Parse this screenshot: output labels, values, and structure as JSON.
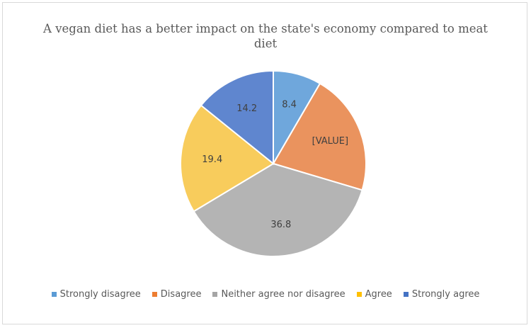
{
  "chart_data": {
    "type": "pie",
    "title": "A vegan diet has a better impact on the state's economy compared to meat diet",
    "categories": [
      "Strongly disagree",
      "Disagree",
      "Neither agree nor disagree",
      "Agree",
      "Strongly agree"
    ],
    "values": [
      8.4,
      21.2,
      36.8,
      19.4,
      14.2
    ],
    "data_labels": [
      "8.4",
      "[VALUE]",
      "36.8",
      "19.4",
      "14.2"
    ],
    "colors": [
      "#5B9BD5",
      "#ED7D31",
      "#A5A5A5",
      "#FFC000",
      "#4472C4"
    ],
    "slice_colors": [
      "#6FA7DC",
      "#EA935E",
      "#B4B4B4",
      "#F8CC5C",
      "#5F86CF"
    ],
    "legend": "bottom"
  }
}
